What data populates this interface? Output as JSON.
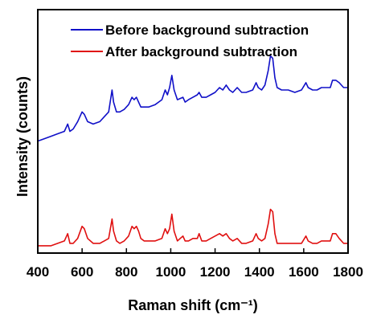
{
  "chart_data": {
    "type": "line",
    "title": "",
    "xlabel": "Raman shift (cm⁻¹)",
    "ylabel": "Intensity (counts)",
    "xlim": [
      400,
      1800
    ],
    "ylim": [
      0,
      100
    ],
    "x_ticks": [
      "400",
      "600",
      "800",
      "1000",
      "1200",
      "1400",
      "1600",
      "1800"
    ],
    "y_ticks": [],
    "grid": false,
    "legend": "top-right",
    "series": [
      {
        "name": "Before background subtraction",
        "color": "#1010c8",
        "x": [
          400,
          430,
          460,
          490,
          520,
          535,
          545,
          560,
          580,
          600,
          610,
          625,
          650,
          680,
          700,
          720,
          735,
          742,
          755,
          770,
          790,
          810,
          825,
          835,
          845,
          855,
          865,
          880,
          900,
          930,
          960,
          975,
          985,
          995,
          1005,
          1015,
          1030,
          1055,
          1065,
          1080,
          1100,
          1120,
          1128,
          1140,
          1160,
          1180,
          1200,
          1220,
          1235,
          1250,
          1265,
          1280,
          1300,
          1320,
          1340,
          1370,
          1385,
          1395,
          1410,
          1425,
          1440,
          1450,
          1460,
          1470,
          1480,
          1500,
          1530,
          1560,
          1590,
          1610,
          1620,
          1640,
          1660,
          1680,
          1700,
          1720,
          1730,
          1745,
          1760,
          1780,
          1800
        ],
        "y": [
          46,
          47,
          48,
          49,
          50,
          53,
          50,
          51,
          54,
          58,
          57,
          54,
          53,
          54,
          56,
          58,
          67,
          62,
          58,
          58,
          59,
          61,
          64,
          63,
          64,
          62,
          60,
          60,
          60,
          61,
          63,
          67,
          65,
          68,
          73,
          67,
          63,
          64,
          62,
          63,
          64,
          65,
          66,
          64,
          64,
          65,
          66,
          68,
          67,
          69,
          67,
          66,
          68,
          66,
          66,
          67,
          70,
          68,
          67,
          69,
          75,
          81,
          80,
          72,
          68,
          67,
          67,
          66,
          67,
          70,
          68,
          67,
          67,
          68,
          68,
          68,
          71,
          71,
          70,
          68,
          68
        ]
      },
      {
        "name": "After background subtraction",
        "color": "#e01010",
        "x": [
          400,
          430,
          460,
          490,
          520,
          535,
          545,
          560,
          580,
          600,
          610,
          625,
          650,
          680,
          700,
          720,
          735,
          742,
          755,
          770,
          790,
          810,
          825,
          835,
          845,
          855,
          865,
          880,
          900,
          930,
          960,
          975,
          985,
          995,
          1005,
          1015,
          1030,
          1055,
          1065,
          1080,
          1100,
          1120,
          1128,
          1140,
          1160,
          1180,
          1200,
          1220,
          1235,
          1250,
          1265,
          1280,
          1300,
          1320,
          1340,
          1370,
          1385,
          1395,
          1410,
          1425,
          1440,
          1450,
          1460,
          1470,
          1480,
          1500,
          1530,
          1560,
          1590,
          1610,
          1620,
          1640,
          1660,
          1680,
          1700,
          1720,
          1730,
          1745,
          1760,
          1780,
          1800
        ],
        "y": [
          3,
          3,
          3,
          4,
          5,
          8,
          4,
          4,
          6,
          11,
          10,
          6,
          4,
          4,
          5,
          6,
          14,
          9,
          5,
          4,
          5,
          7,
          11,
          10,
          11,
          9,
          6,
          5,
          5,
          5,
          6,
          10,
          8,
          10,
          16,
          9,
          5,
          7,
          5,
          5,
          6,
          6,
          8,
          5,
          5,
          6,
          7,
          8,
          7,
          8,
          6,
          5,
          6,
          4,
          4,
          5,
          8,
          6,
          5,
          6,
          12,
          18,
          17,
          8,
          4,
          4,
          4,
          4,
          4,
          7,
          5,
          4,
          4,
          5,
          5,
          5,
          8,
          8,
          6,
          4,
          4
        ]
      }
    ]
  }
}
